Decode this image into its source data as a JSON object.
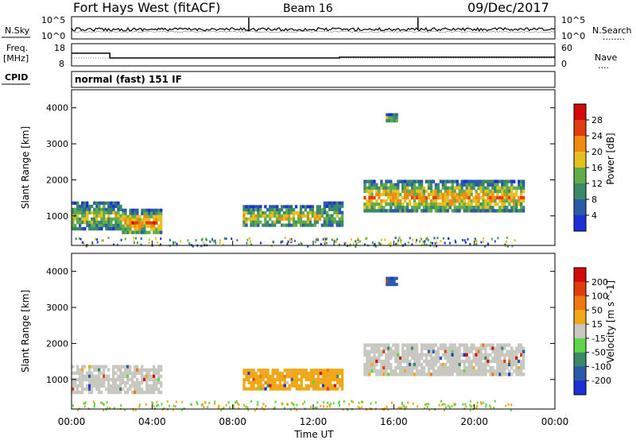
{
  "header": {
    "station": "Fort Hays West (fitACF)",
    "beam": "Beam 16",
    "date": "09/Dec/2017"
  },
  "noise_panel": {
    "left_label": "N.Sky",
    "right_label": "N.Search",
    "right_label_dots": "........",
    "yticks_left": [
      "10^5",
      "10^0"
    ],
    "yticks_right": [
      "10^5",
      "10^0"
    ]
  },
  "freq_panel": {
    "label_line1": "Freq.",
    "label_line2": "[MHz]",
    "right_label": "Nave",
    "right_label_dots": "....",
    "yticks_left": [
      "18",
      "8"
    ],
    "yticks_right": [
      "60",
      "0"
    ]
  },
  "cpid": {
    "label": "CPID",
    "mode": "normal (fast) 151 IF"
  },
  "chart_data": [
    {
      "type": "heatmap",
      "name": "power",
      "ylabel": "Slant Range [km]",
      "colorbar_label": "Power [dB]",
      "colorbar_ticks": [
        "4",
        "8",
        "12",
        "16",
        "20",
        "24",
        "28"
      ],
      "colorbar_colors": [
        "#1f2fd6",
        "#2b5aa8",
        "#3a8a6a",
        "#5fae4a",
        "#e5c020",
        "#f08a10",
        "#e03c10",
        "#d40a0a"
      ],
      "yticks": [
        "1000",
        "2000",
        "3000",
        "4000"
      ],
      "ylim": [
        180,
        4500
      ],
      "xlim": [
        0,
        24
      ],
      "regions": [
        {
          "t0": 0.0,
          "t1": 2.5,
          "r0": 600,
          "r1": 1400,
          "level": 0.55
        },
        {
          "t0": 2.5,
          "t1": 4.5,
          "r0": 500,
          "r1": 1200,
          "level": 0.75
        },
        {
          "t0": 8.5,
          "t1": 12.5,
          "r0": 700,
          "r1": 1300,
          "level": 0.6
        },
        {
          "t0": 12.5,
          "t1": 13.5,
          "r0": 700,
          "r1": 1400,
          "level": 0.45
        },
        {
          "t0": 14.5,
          "t1": 22.5,
          "r0": 1100,
          "r1": 2000,
          "level": 0.7
        },
        {
          "t0": 15.6,
          "t1": 16.2,
          "r0": 3600,
          "r1": 3850,
          "level": 0.5
        }
      ]
    },
    {
      "type": "heatmap",
      "name": "velocity",
      "ylabel": "Slant Range [km]",
      "colorbar_label": "Velocity [m s^-1]",
      "colorbar_ticks": [
        "200",
        "100",
        "50",
        "15",
        "-15",
        "-50",
        "-100",
        "-200"
      ],
      "colorbar_colors": [
        "#1f2fd6",
        "#2b5aa8",
        "#3a8a6a",
        "#5fd64a",
        "#c8c8c0",
        "#f0a818",
        "#f07810",
        "#e03c10",
        "#d40a0a"
      ],
      "yticks": [
        "1000",
        "2000",
        "3000",
        "4000"
      ],
      "ylim": [
        180,
        4500
      ],
      "xlim": [
        0,
        24
      ],
      "xticks": [
        "00:00",
        "04:00",
        "08:00",
        "12:00",
        "16:00",
        "20:00",
        "00:00"
      ],
      "xlabel": "Time UT",
      "regions": [
        {
          "t0": 0.0,
          "t1": 4.5,
          "r0": 600,
          "r1": 1400,
          "color": "#c8c8c0"
        },
        {
          "t0": 8.5,
          "t1": 13.5,
          "r0": 700,
          "r1": 1300,
          "color": "#f0a818"
        },
        {
          "t0": 14.5,
          "t1": 22.5,
          "r0": 1100,
          "r1": 2000,
          "color": "#c8c8c0"
        },
        {
          "t0": 15.6,
          "t1": 16.2,
          "r0": 3600,
          "r1": 3850,
          "color": "#2b5aa8"
        }
      ]
    }
  ]
}
